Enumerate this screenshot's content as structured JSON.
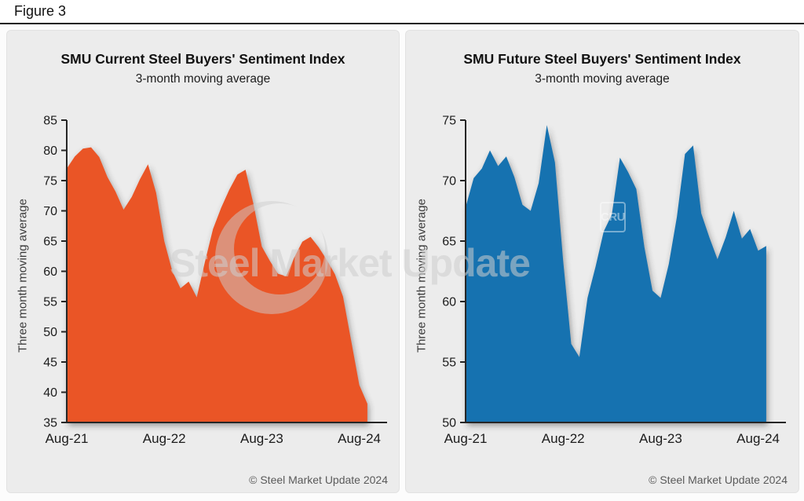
{
  "figure_label": "Figure 3",
  "watermark": {
    "text": "Steel Market Update",
    "cru_label": "CRU"
  },
  "chart_data": [
    {
      "type": "area",
      "title": "SMU Current Steel Buyers' Sentiment Index",
      "subtitle": "3-month moving average",
      "ylabel": "Three month moving average",
      "xlabel": "",
      "copyright": "© Steel Market Update 2024",
      "color": "#EA5527",
      "ylim": [
        35,
        85
      ],
      "ytick_step": 5,
      "grid": false,
      "legend": false,
      "x_axis": {
        "start": "Aug-21",
        "interval": "monthly",
        "points": 38
      },
      "xticklabels": [
        "Aug-21",
        "Aug-22",
        "Aug-23",
        "Aug-24"
      ],
      "xtick_month_indices": [
        0,
        12,
        24,
        36
      ],
      "values": [
        77.0,
        79.0,
        80.3,
        80.5,
        78.9,
        75.6,
        73.2,
        70.2,
        72.3,
        75.2,
        77.7,
        73.0,
        65.0,
        60.0,
        57.2,
        58.3,
        55.7,
        61.5,
        67.0,
        70.5,
        73.5,
        76.0,
        76.8,
        71.0,
        64.1,
        61.7,
        59.6,
        59.2,
        62.3,
        64.9,
        65.7,
        64.0,
        61.9,
        59.5,
        55.8,
        48.5,
        41.2,
        38.1
      ]
    },
    {
      "type": "area",
      "title": "SMU Future Steel Buyers' Sentiment Index",
      "subtitle": "3-month moving average",
      "ylabel": "Three month moving average",
      "xlabel": "",
      "copyright": "© Steel Market Update 2024",
      "color": "#1772B0",
      "ylim": [
        50,
        75
      ],
      "ytick_step": 5,
      "grid": false,
      "legend": false,
      "x_axis": {
        "start": "Aug-21",
        "interval": "monthly",
        "points": 38
      },
      "xticklabels": [
        "Aug-21",
        "Aug-22",
        "Aug-23",
        "Aug-24"
      ],
      "xtick_month_indices": [
        0,
        12,
        24,
        36
      ],
      "values": [
        67.8,
        70.2,
        71.0,
        72.5,
        71.2,
        72.0,
        70.3,
        68.0,
        67.5,
        69.8,
        74.6,
        71.5,
        63.4,
        56.5,
        55.4,
        60.3,
        62.9,
        65.8,
        67.2,
        71.9,
        70.7,
        69.3,
        64.5,
        60.9,
        60.3,
        63.1,
        67.0,
        72.2,
        72.9,
        67.3,
        65.3,
        63.5,
        65.3,
        67.5,
        65.2,
        66.0,
        64.2,
        64.6
      ]
    }
  ]
}
